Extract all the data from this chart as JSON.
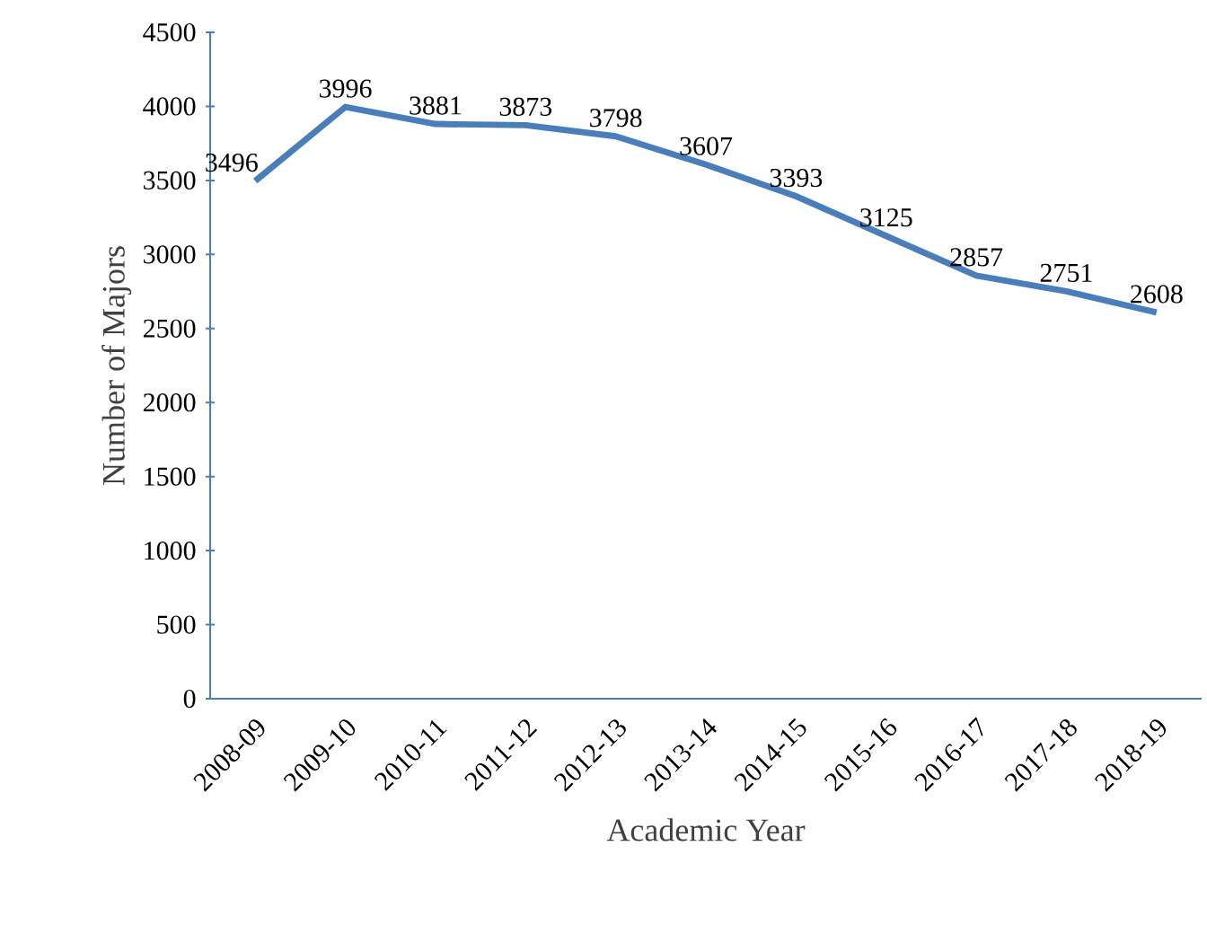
{
  "chart_data": {
    "type": "line",
    "xlabel": "Academic Year",
    "ylabel": "Number of Majors",
    "categories": [
      "2008-09",
      "2009-10",
      "2010-11",
      "2011-12",
      "2012-13",
      "2013-14",
      "2014-15",
      "2015-16",
      "2016-17",
      "2017-18",
      "2018-19"
    ],
    "values": [
      3496,
      3996,
      3881,
      3873,
      3798,
      3607,
      3393,
      3125,
      2857,
      2751,
      2608
    ],
    "color": "#4a7ebb",
    "ylim": [
      0,
      4500
    ],
    "yticks": [
      0,
      500,
      1000,
      1500,
      2000,
      2500,
      3000,
      3500,
      4000,
      4500
    ],
    "grid": false,
    "marker": "none",
    "line_style": "solid",
    "data_labels": true
  }
}
